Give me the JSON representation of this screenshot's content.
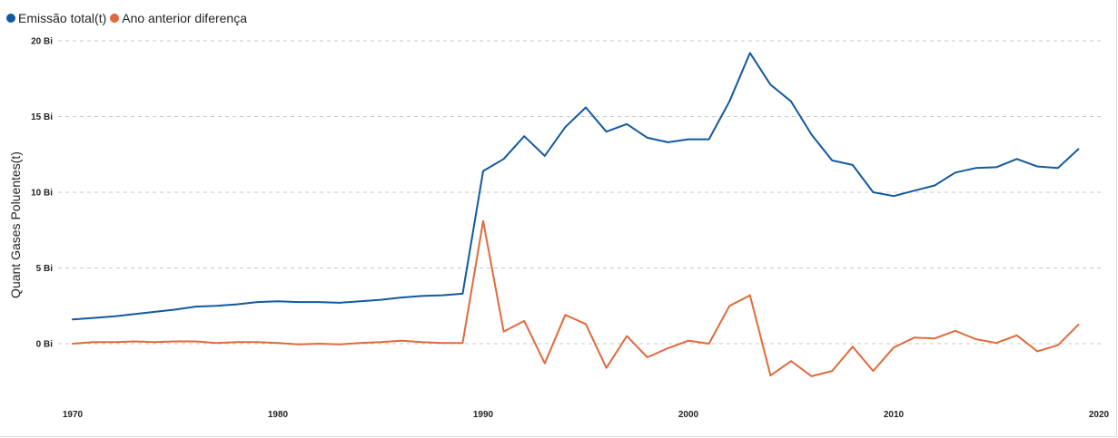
{
  "chart_data": {
    "type": "line",
    "title": "",
    "xlabel": "",
    "ylabel": "Quant Gases Poluentes(t)",
    "xlim": [
      1970,
      2020
    ],
    "ylim": [
      -2.5,
      20
    ],
    "x_ticks": [
      "1970",
      "1980",
      "1990",
      "2000",
      "2010",
      "2020"
    ],
    "y_ticks": [
      {
        "value": 20,
        "label": "20 Bi"
      },
      {
        "value": 15,
        "label": "15 Bi"
      },
      {
        "value": 10,
        "label": "10 Bi"
      },
      {
        "value": 5,
        "label": "5 Bi"
      },
      {
        "value": 0,
        "label": "0 Bi"
      }
    ],
    "grid": true,
    "legend_position": "top-left",
    "x": [
      1970,
      1971,
      1972,
      1973,
      1974,
      1975,
      1976,
      1977,
      1978,
      1979,
      1980,
      1981,
      1982,
      1983,
      1984,
      1985,
      1986,
      1987,
      1988,
      1989,
      1990,
      1991,
      1992,
      1993,
      1994,
      1995,
      1996,
      1997,
      1998,
      1999,
      2000,
      2001,
      2002,
      2003,
      2004,
      2005,
      2006,
      2007,
      2008,
      2009,
      2010,
      2011,
      2012,
      2013,
      2014,
      2015,
      2016,
      2017,
      2018,
      2019
    ],
    "series": [
      {
        "name": "Emissão total(t)",
        "color": "#12599f",
        "values": [
          1.6,
          1.7,
          1.8,
          1.95,
          2.1,
          2.25,
          2.45,
          2.5,
          2.6,
          2.75,
          2.8,
          2.75,
          2.75,
          2.7,
          2.8,
          2.9,
          3.05,
          3.15,
          3.2,
          3.3,
          11.4,
          12.2,
          13.7,
          12.4,
          14.3,
          15.6,
          14.0,
          14.5,
          13.6,
          13.3,
          13.5,
          13.5,
          16.0,
          19.2,
          17.1,
          16.0,
          13.8,
          12.1,
          11.8,
          10.0,
          9.75,
          10.1,
          10.45,
          11.3,
          11.6,
          11.65,
          12.2,
          11.7,
          11.6,
          12.85
        ]
      },
      {
        "name": "Ano anterior diferença",
        "color": "#e06a3c",
        "values": [
          0.0,
          0.1,
          0.1,
          0.15,
          0.1,
          0.15,
          0.15,
          0.05,
          0.1,
          0.1,
          0.05,
          -0.05,
          0.0,
          -0.05,
          0.05,
          0.1,
          0.2,
          0.1,
          0.05,
          0.05,
          8.1,
          0.8,
          1.5,
          -1.3,
          1.9,
          1.3,
          -1.6,
          0.5,
          -0.9,
          -0.3,
          0.2,
          0.0,
          2.5,
          3.2,
          -2.1,
          -1.15,
          -2.15,
          -1.8,
          -0.2,
          -1.8,
          -0.25,
          0.4,
          0.35,
          0.85,
          0.3,
          0.05,
          0.55,
          -0.5,
          -0.1,
          1.25
        ]
      }
    ]
  }
}
